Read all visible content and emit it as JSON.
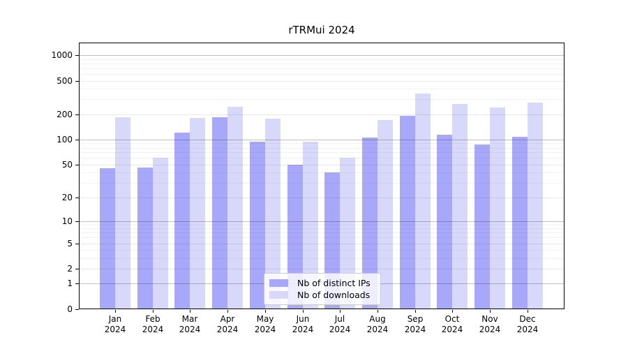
{
  "chart_data": {
    "type": "bar",
    "title": "rTRMui 2024",
    "categories": [
      "Jan 2024",
      "Feb 2024",
      "Mar 2024",
      "Apr 2024",
      "May 2024",
      "Jun 2024",
      "Jul 2024",
      "Aug 2024",
      "Sep 2024",
      "Oct 2024",
      "Nov 2024",
      "Dec 2024"
    ],
    "series": [
      {
        "key": "distinct_ips",
        "name": "Nb of distinct IPs",
        "color": "#a8a8fa",
        "values": [
          45,
          46,
          120,
          185,
          95,
          50,
          40,
          106,
          190,
          115,
          88,
          108
        ]
      },
      {
        "key": "downloads",
        "name": "Nb of downloads",
        "color": "#d8d8fa",
        "values": [
          185,
          61,
          180,
          245,
          178,
          95,
          60,
          170,
          355,
          263,
          242,
          276
        ]
      }
    ],
    "y_axis": {
      "scale": "log10(value+1)",
      "ticks": [
        0,
        1,
        2,
        5,
        10,
        20,
        50,
        100,
        200,
        500,
        1000
      ],
      "tick_labels": [
        "0",
        "1",
        "2",
        "5",
        "10",
        "20",
        "50",
        "100",
        "200",
        "500",
        "1000"
      ],
      "top_value": 1450,
      "minor_decades": [
        1,
        10,
        100
      ],
      "minor_multiples": [
        3,
        4,
        6,
        7,
        8,
        9
      ]
    },
    "x_axis": {
      "tick_labels_two_lines": true
    },
    "legend": {
      "position": "inside-bottom-center"
    },
    "grid": {
      "power_line_color": "rgba(0,0,0,0.25)",
      "tick_line_color": "rgba(0,0,0,0.09)",
      "minor_line_color": "rgba(0,0,0,0.05)"
    },
    "colors": {
      "background": "#ffffff",
      "axis": "#000000",
      "text": "#000000"
    }
  }
}
